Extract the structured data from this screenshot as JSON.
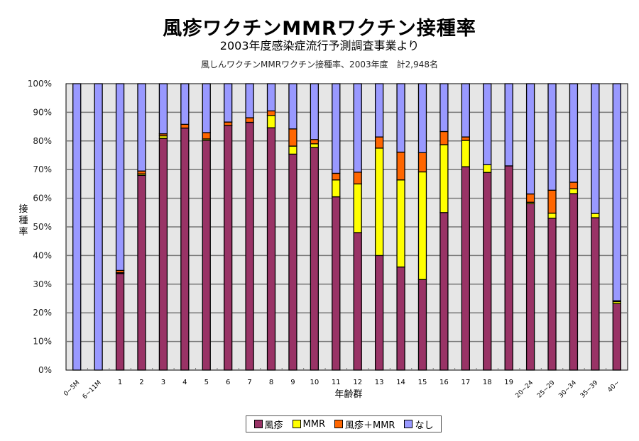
{
  "chart_data": {
    "type": "bar",
    "stacked": true,
    "title": "風疹ワクチンMMRワクチン接種率",
    "subtitle": "2003年度感染症流行予測調査事業より",
    "chart_title": "風しんワクチンMMRワクチン接種率、2003年度　計2,948名",
    "xlabel": "年齢群",
    "ylabel": "接種率",
    "ylim": [
      0,
      100
    ],
    "yticks": [
      "0%",
      "10%",
      "20%",
      "30%",
      "40%",
      "50%",
      "60%",
      "70%",
      "80%",
      "90%",
      "100%"
    ],
    "grid": true,
    "legend_position": "bottom",
    "categories": [
      "0~5M",
      "6~11M",
      "1",
      "2",
      "3",
      "4",
      "5",
      "6",
      "7",
      "8",
      "9",
      "10",
      "11",
      "12",
      "13",
      "14",
      "15",
      "16",
      "17",
      "18",
      "19",
      "20~24",
      "25~29",
      "30~34",
      "35~39",
      "40~"
    ],
    "rotated_categories": [
      "0~5M",
      "6~11M",
      "20~24",
      "25~29",
      "30~34",
      "35~39",
      "40~"
    ],
    "series": [
      {
        "name": "風疹",
        "color": "#993366",
        "values": [
          0,
          0,
          33.7,
          68.0,
          80.9,
          84.5,
          80.2,
          85.4,
          86.5,
          84.6,
          75.4,
          77.7,
          60.5,
          48.0,
          40.0,
          36.0,
          31.6,
          55.0,
          71.0,
          69.0,
          71.3,
          58.1,
          53.0,
          61.6,
          53.2,
          23.2
        ]
      },
      {
        "name": "MMR",
        "color": "#FFFF00",
        "values": [
          0,
          0,
          0.3,
          0.5,
          0.9,
          0,
          0.5,
          0,
          0,
          4.3,
          2.8,
          1.3,
          5.9,
          17.0,
          37.5,
          30.4,
          37.6,
          23.7,
          9.2,
          2.7,
          0,
          0.5,
          1.8,
          1.7,
          1.5,
          0.7
        ]
      },
      {
        "name": "風疹＋MMR",
        "color": "#FF6600",
        "values": [
          0,
          0,
          0.8,
          1.0,
          0.7,
          1.3,
          2.2,
          1.2,
          1.6,
          1.6,
          6.0,
          1.5,
          2.3,
          4.1,
          3.9,
          9.7,
          6.7,
          4.6,
          1.2,
          0,
          0,
          2.9,
          8.0,
          2.3,
          0,
          0.3
        ]
      },
      {
        "name": "なし",
        "color": "#9999FF",
        "values": [
          100,
          100,
          65.2,
          30.5,
          17.5,
          14.2,
          17.1,
          13.4,
          11.9,
          9.5,
          15.8,
          19.5,
          31.3,
          30.9,
          18.6,
          23.9,
          24.1,
          16.7,
          18.6,
          28.3,
          28.7,
          38.5,
          37.2,
          34.4,
          45.3,
          75.8
        ]
      }
    ]
  }
}
